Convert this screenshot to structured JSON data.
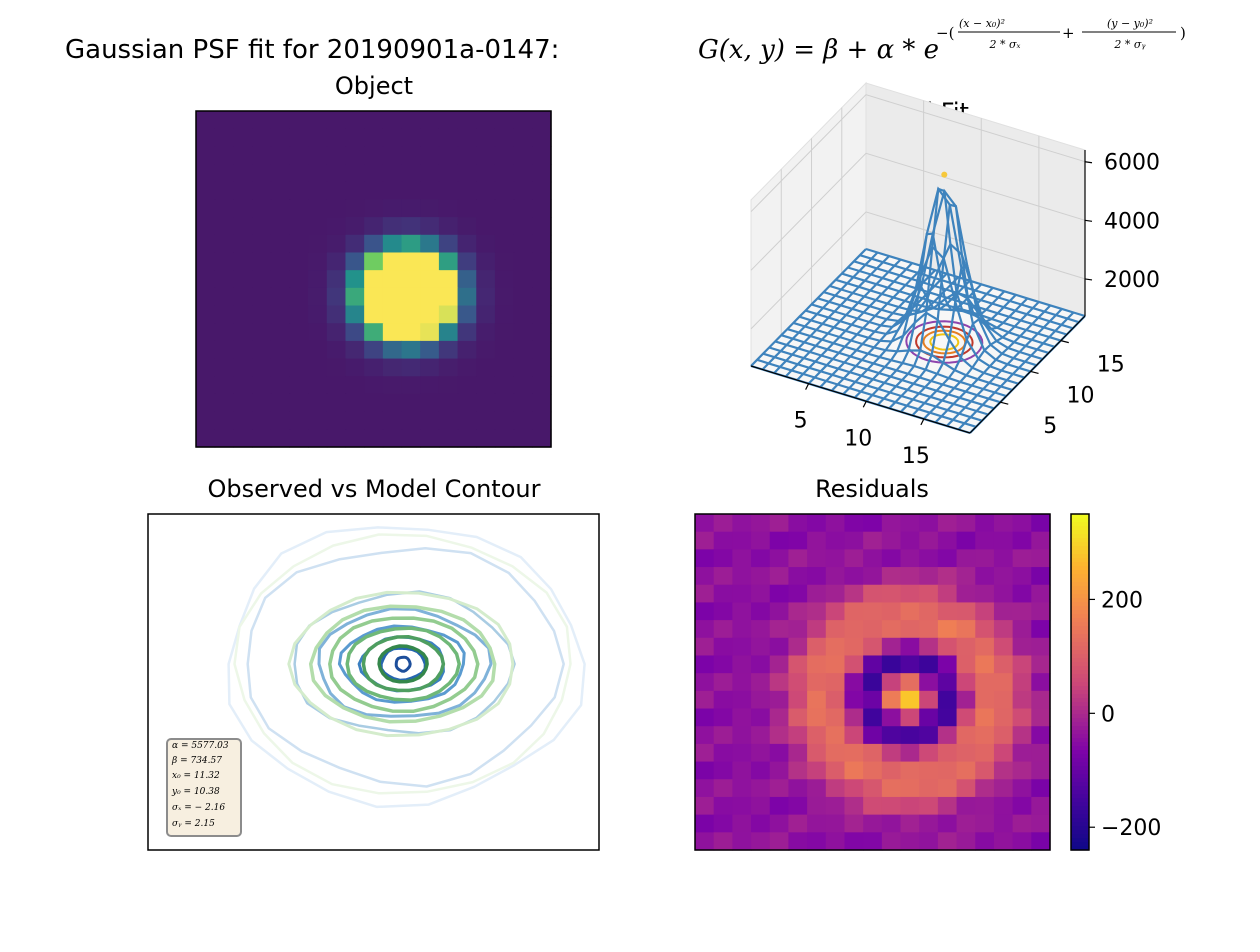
{
  "figure": {
    "title_text": "Gaussian PSF fit for 20190901a-0147:",
    "formula": {
      "lhs": "G(x, y) = β + α * e",
      "exponent_prefix": "−(",
      "num1": "(x − x₀)²",
      "den1": "2 * σₓ",
      "plus": "+",
      "num2": "(y − y₀)²",
      "den2": "2 * σᵧ",
      "exponent_suffix": ")"
    }
  },
  "chart_data": [
    {
      "type": "heatmap",
      "title": "Object",
      "grid_size": 19,
      "colormap": "viridis",
      "clim": [
        734.57,
        2200
      ],
      "axes_visible": false
    },
    {
      "type": "surface-3d",
      "title": "Model Fit",
      "x_ticks": [
        "5",
        "10",
        "15"
      ],
      "y_ticks": [
        "5",
        "10",
        "15"
      ],
      "z_ticks": [
        "2000",
        "4000",
        "6000"
      ],
      "xlim": [
        0,
        19
      ],
      "ylim": [
        0,
        19
      ],
      "zlim": [
        734.57,
        6400
      ],
      "wire_color": "#3e83bd",
      "contour_colors": [
        "#8e44ad",
        "#c0392b",
        "#e67e22",
        "#f1c40f"
      ]
    },
    {
      "type": "contour",
      "title": "Observed vs Model Contour",
      "observed_colormap": "Blues",
      "model_colormap": "Greens",
      "axes_visible": false,
      "legend_box": {
        "lines": [
          "α = 5577.03",
          "β = 734.57",
          "x₀ = 11.32",
          "y₀ = 10.38",
          "σₓ = − 2.16",
          "σᵧ = 2.15"
        ]
      }
    },
    {
      "type": "heatmap",
      "title": "Residuals",
      "grid_size": 19,
      "colormap": "plasma",
      "clim": [
        -240,
        350
      ],
      "colorbar_ticks": [
        "200",
        "0",
        "−200"
      ],
      "colorbar_tick_values": [
        200,
        0,
        -200
      ],
      "axes_visible": false
    }
  ],
  "fit": {
    "alpha": 5577.03,
    "beta": 734.57,
    "x0": 11.32,
    "y0": 10.38,
    "sigma_x": -2.16,
    "sigma_y": 2.15
  }
}
